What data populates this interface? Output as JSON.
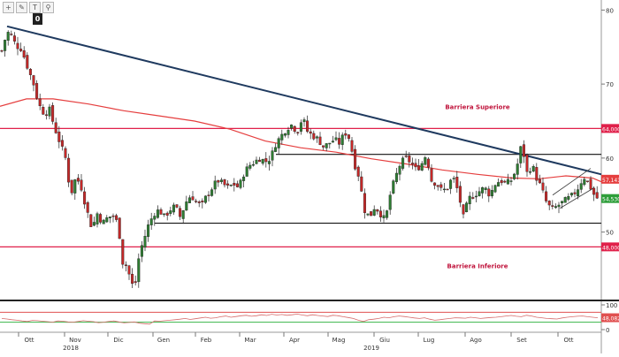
{
  "toolbar": {
    "tools": [
      {
        "name": "crosshair-tool",
        "glyph": "+"
      },
      {
        "name": "pencil-tool",
        "glyph": "✎"
      },
      {
        "name": "text-tool",
        "glyph": "T"
      },
      {
        "name": "zoom-tool",
        "glyph": "⚲"
      }
    ],
    "badge": "0"
  },
  "colors": {
    "candle_up": "#2e7d32",
    "candle_down": "#c62828",
    "ma_line": "#e53e3e",
    "trendline": "#1f3a5f",
    "barrier": "#e0204a",
    "range": "#111111",
    "rsi_line": "#d66b6b",
    "rsi_band_low": "#3ab54a",
    "rsi_band_high": "#e05050"
  },
  "chart_data": [
    {
      "type": "candlestick",
      "y_ticks": [
        "80",
        "70",
        "60",
        "50"
      ],
      "ylim": [
        41,
        81
      ],
      "x_ticks": [
        "Ott",
        "Nov",
        "Dic",
        "Gen",
        "Feb",
        "Mar",
        "Apr",
        "Mag",
        "Giu",
        "Lug",
        "Ago",
        "Set",
        "Ott"
      ],
      "year_labels": [
        "2018",
        "2019"
      ],
      "price_labels": [
        {
          "text": "64,0000",
          "value": 64.0,
          "kind": "barrier"
        },
        {
          "text": "57,1413",
          "value": 57.14,
          "kind": "ma"
        },
        {
          "text": "54,5300",
          "value": 54.53,
          "kind": "last"
        },
        {
          "text": "48,0000",
          "value": 48.0,
          "kind": "barrier"
        }
      ],
      "annotations": [
        {
          "text": "Barriera Superiore",
          "x": 540,
          "y": 67.0
        },
        {
          "text": "Barriera Inferiore",
          "x": 540,
          "y": 45.5
        }
      ],
      "barriers": [
        64.0,
        48.0
      ],
      "range_lines": [
        {
          "y": 60.5,
          "x_from": 312,
          "x_to": 680
        },
        {
          "y": 51.2,
          "x_from": 175,
          "x_to": 680
        }
      ],
      "trendline": {
        "from": [
          8,
          77.8
        ],
        "to": [
          680,
          57.8
        ]
      },
      "channel": [
        {
          "from": [
            633,
            53.2
          ],
          "to": [
            672,
            56.0
          ]
        },
        {
          "from": [
            625,
            55.0
          ],
          "to": [
            668,
            58.6
          ]
        }
      ],
      "ma_points": [
        [
          0,
          67.0
        ],
        [
          30,
          68.0
        ],
        [
          60,
          68.0
        ],
        [
          100,
          67.3
        ],
        [
          140,
          66.4
        ],
        [
          180,
          65.7
        ],
        [
          220,
          65.0
        ],
        [
          260,
          63.9
        ],
        [
          300,
          62.3
        ],
        [
          340,
          61.4
        ],
        [
          380,
          60.8
        ],
        [
          420,
          59.9
        ],
        [
          460,
          59.2
        ],
        [
          500,
          58.4
        ],
        [
          540,
          57.8
        ],
        [
          580,
          57.3
        ],
        [
          610,
          57.2
        ],
        [
          640,
          57.6
        ],
        [
          670,
          57.3
        ],
        [
          680,
          56.8
        ]
      ],
      "price_path": [
        [
          2,
          74.5
        ],
        [
          8,
          77.0
        ],
        [
          12,
          76.8
        ],
        [
          18,
          75.2
        ],
        [
          24,
          74.8
        ],
        [
          32,
          72.0
        ],
        [
          38,
          70.0
        ],
        [
          44,
          67.2
        ],
        [
          50,
          66.0
        ],
        [
          56,
          66.5
        ],
        [
          62,
          64.0
        ],
        [
          68,
          62.0
        ],
        [
          74,
          60.0
        ],
        [
          80,
          55.0
        ],
        [
          86,
          57.5
        ],
        [
          92,
          56.0
        ],
        [
          98,
          53.0
        ],
        [
          104,
          50.5
        ],
        [
          110,
          52.5
        ],
        [
          116,
          51.2
        ],
        [
          122,
          52.0
        ],
        [
          128,
          52.2
        ],
        [
          134,
          51.0
        ],
        [
          138,
          46.0
        ],
        [
          143,
          45.5
        ],
        [
          148,
          43.5
        ],
        [
          152,
          42.0
        ],
        [
          156,
          46.0
        ],
        [
          160,
          48.0
        ],
        [
          164,
          49.5
        ],
        [
          168,
          51.0
        ],
        [
          174,
          52.5
        ],
        [
          180,
          53.0
        ],
        [
          186,
          52.0
        ],
        [
          192,
          53.0
        ],
        [
          198,
          53.5
        ],
        [
          204,
          52.0
        ],
        [
          210,
          54.0
        ],
        [
          216,
          55.0
        ],
        [
          222,
          54.0
        ],
        [
          228,
          53.5
        ],
        [
          234,
          55.0
        ],
        [
          240,
          56.0
        ],
        [
          246,
          57.0
        ],
        [
          252,
          56.5
        ],
        [
          258,
          56.0
        ],
        [
          264,
          56.5
        ],
        [
          270,
          56.0
        ],
        [
          276,
          58.0
        ],
        [
          282,
          59.0
        ],
        [
          288,
          59.5
        ],
        [
          294,
          60.0
        ],
        [
          300,
          59.5
        ],
        [
          306,
          60.0
        ],
        [
          312,
          62.0
        ],
        [
          318,
          63.0
        ],
        [
          324,
          64.0
        ],
        [
          330,
          64.5
        ],
        [
          336,
          63.5
        ],
        [
          342,
          65.5
        ],
        [
          348,
          63.5
        ],
        [
          354,
          63.0
        ],
        [
          360,
          62.5
        ],
        [
          366,
          61.5
        ],
        [
          372,
          62.0
        ],
        [
          378,
          62.5
        ],
        [
          384,
          62.0
        ],
        [
          390,
          63.5
        ],
        [
          396,
          62.5
        ],
        [
          400,
          59.5
        ],
        [
          406,
          57.5
        ],
        [
          412,
          53.0
        ],
        [
          418,
          52.0
        ],
        [
          424,
          53.5
        ],
        [
          430,
          52.5
        ],
        [
          436,
          51.5
        ],
        [
          440,
          54.5
        ],
        [
          446,
          57.0
        ],
        [
          452,
          59.0
        ],
        [
          458,
          60.0
        ],
        [
          464,
          59.5
        ],
        [
          470,
          58.5
        ],
        [
          476,
          59.0
        ],
        [
          482,
          60.5
        ],
        [
          488,
          57.0
        ],
        [
          494,
          56.5
        ],
        [
          500,
          55.5
        ],
        [
          506,
          56.0
        ],
        [
          512,
          57.5
        ],
        [
          518,
          55.5
        ],
        [
          524,
          52.0
        ],
        [
          530,
          54.5
        ],
        [
          536,
          55.0
        ],
        [
          542,
          55.5
        ],
        [
          548,
          56.0
        ],
        [
          554,
          55.0
        ],
        [
          560,
          56.5
        ],
        [
          566,
          57.0
        ],
        [
          572,
          56.5
        ],
        [
          578,
          57.0
        ],
        [
          584,
          58.5
        ],
        [
          590,
          62.0
        ],
        [
          596,
          58.0
        ],
        [
          602,
          59.0
        ],
        [
          606,
          57.5
        ],
        [
          612,
          56.0
        ],
        [
          618,
          54.0
        ],
        [
          624,
          53.0
        ],
        [
          630,
          53.5
        ],
        [
          636,
          54.0
        ],
        [
          642,
          54.5
        ],
        [
          648,
          55.0
        ],
        [
          654,
          56.0
        ],
        [
          660,
          57.5
        ],
        [
          666,
          56.5
        ],
        [
          672,
          55.0
        ],
        [
          676,
          54.5
        ]
      ]
    },
    {
      "type": "line",
      "y_ticks": [
        "100",
        "0"
      ],
      "ylim": [
        0,
        100
      ],
      "bands": [
        30,
        70
      ],
      "last_value_label": "48,0820",
      "values": [
        45,
        43,
        40,
        38,
        35,
        33,
        37,
        36,
        34,
        32,
        30,
        35,
        34,
        31,
        30,
        33,
        36,
        34,
        32,
        28,
        30,
        33,
        35,
        31,
        27,
        29,
        31,
        26,
        24,
        22,
        35,
        34,
        36,
        38,
        40,
        42,
        45,
        41,
        44,
        47,
        50,
        46,
        48,
        52,
        55,
        50,
        53,
        56,
        58,
        54,
        56,
        60,
        57,
        62,
        59,
        61,
        58,
        60,
        63,
        59,
        56,
        60,
        57,
        55,
        53,
        58,
        56,
        52,
        49,
        45,
        38,
        33,
        40,
        42,
        45,
        50,
        48,
        52,
        55,
        53,
        50,
        47,
        45,
        48,
        42,
        38,
        40,
        43,
        45,
        48,
        47,
        46,
        50,
        48,
        45,
        47,
        49,
        50,
        52,
        55,
        57,
        54,
        52,
        58,
        55,
        50,
        48,
        45,
        44,
        43,
        47,
        50,
        52,
        54,
        55,
        52,
        50,
        48
      ]
    }
  ]
}
